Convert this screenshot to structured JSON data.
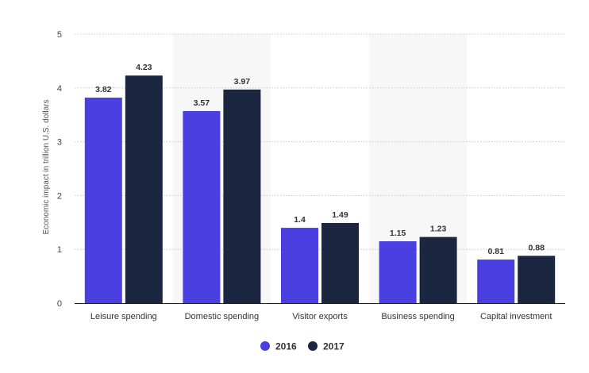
{
  "chart_data": {
    "type": "bar",
    "title": "",
    "xlabel": "",
    "ylabel": "Economic impact in trillion U.S. dollars",
    "ylim": [
      0,
      5
    ],
    "yticks": [
      0,
      1,
      2,
      3,
      4,
      5
    ],
    "grid": true,
    "legend_position": "bottom-center",
    "categories": [
      "Leisure spending",
      "Domestic spending",
      "Visitor exports",
      "Business spending",
      "Capital investment"
    ],
    "series": [
      {
        "name": "2016",
        "color": "#4a3fe0",
        "values": [
          3.82,
          3.57,
          1.4,
          1.15,
          0.81
        ],
        "labels": [
          "3.82",
          "3.57",
          "1.4",
          "1.15",
          "0.81"
        ]
      },
      {
        "name": "2017",
        "color": "#1b2640",
        "values": [
          4.23,
          3.97,
          1.49,
          1.23,
          0.88
        ],
        "labels": [
          "4.23",
          "3.97",
          "1.49",
          "1.23",
          "0.88"
        ]
      }
    ],
    "shaded_categories": [
      1,
      3
    ]
  }
}
